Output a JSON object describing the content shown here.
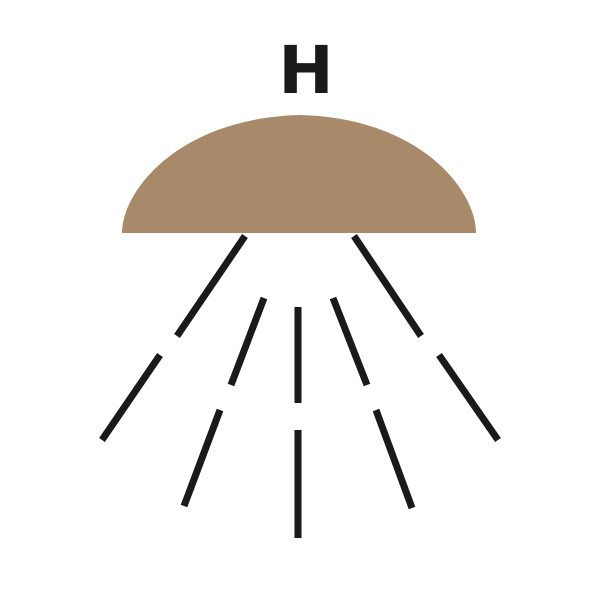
{
  "symbol": {
    "letter": "H",
    "canopy_color": "#a88969",
    "line_color": "#1a1a1a",
    "background_color": "#ffffff",
    "canopy_icon": "sprinkler-canopy-icon",
    "spray_icon": "spray-line-icon"
  }
}
